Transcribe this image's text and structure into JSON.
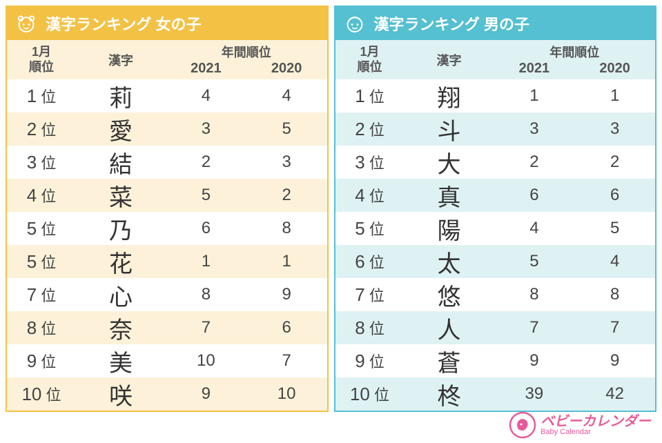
{
  "girls": {
    "title": "漢字ランキング 女の子",
    "header_bg": "#f3c245",
    "stripe_bg": "#fdf2d9",
    "col_rank_line1": "1月",
    "col_rank_line2": "順位",
    "col_kanji": "漢字",
    "col_years_title": "年間順位",
    "col_year1": "2021",
    "col_year2": "2020",
    "rows": [
      {
        "rank": "1",
        "kanji": "莉",
        "y2021": "4",
        "y2020": "4"
      },
      {
        "rank": "2",
        "kanji": "愛",
        "y2021": "3",
        "y2020": "5"
      },
      {
        "rank": "3",
        "kanji": "結",
        "y2021": "2",
        "y2020": "3"
      },
      {
        "rank": "4",
        "kanji": "菜",
        "y2021": "5",
        "y2020": "2"
      },
      {
        "rank": "5",
        "kanji": "乃",
        "y2021": "6",
        "y2020": "8"
      },
      {
        "rank": "5",
        "kanji": "花",
        "y2021": "1",
        "y2020": "1"
      },
      {
        "rank": "7",
        "kanji": "心",
        "y2021": "8",
        "y2020": "9"
      },
      {
        "rank": "8",
        "kanji": "奈",
        "y2021": "7",
        "y2020": "6"
      },
      {
        "rank": "9",
        "kanji": "美",
        "y2021": "10",
        "y2020": "7"
      },
      {
        "rank": "10",
        "kanji": "咲",
        "y2021": "9",
        "y2020": "10"
      }
    ]
  },
  "boys": {
    "title": "漢字ランキング 男の子",
    "header_bg": "#54c0d1",
    "stripe_bg": "#def2f4",
    "col_rank_line1": "1月",
    "col_rank_line2": "順位",
    "col_kanji": "漢字",
    "col_years_title": "年間順位",
    "col_year1": "2021",
    "col_year2": "2020",
    "rows": [
      {
        "rank": "1",
        "kanji": "翔",
        "y2021": "1",
        "y2020": "1"
      },
      {
        "rank": "2",
        "kanji": "斗",
        "y2021": "3",
        "y2020": "3"
      },
      {
        "rank": "3",
        "kanji": "大",
        "y2021": "2",
        "y2020": "2"
      },
      {
        "rank": "4",
        "kanji": "真",
        "y2021": "6",
        "y2020": "6"
      },
      {
        "rank": "5",
        "kanji": "陽",
        "y2021": "4",
        "y2020": "5"
      },
      {
        "rank": "6",
        "kanji": "太",
        "y2021": "5",
        "y2020": "4"
      },
      {
        "rank": "7",
        "kanji": "悠",
        "y2021": "8",
        "y2020": "8"
      },
      {
        "rank": "8",
        "kanji": "人",
        "y2021": "7",
        "y2020": "7"
      },
      {
        "rank": "9",
        "kanji": "蒼",
        "y2021": "9",
        "y2020": "9"
      },
      {
        "rank": "10",
        "kanji": "柊",
        "y2021": "39",
        "y2020": "42"
      }
    ]
  },
  "rank_suffix": "位",
  "logo": {
    "jp": "ベビーカレンダー",
    "en": "Baby Calendar",
    "color": "#e85a9a"
  }
}
